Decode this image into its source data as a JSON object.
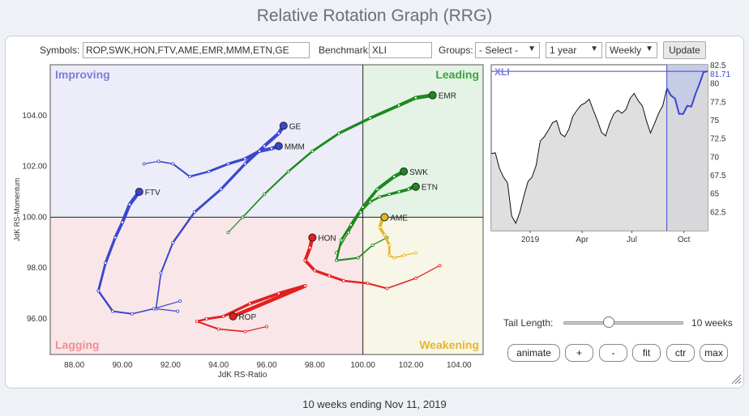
{
  "page_title": "Relative Rotation Graph (RRG)",
  "controls": {
    "symbols_label": "Symbols:",
    "symbols_value": "ROP,SWK,HON,FTV,AME,EMR,MMM,ETN,GE",
    "benchmark_label": "Benchmark:",
    "benchmark_value": "XLI",
    "groups_label": "Groups:",
    "groups_value": "- Select -",
    "period_value": "1 year",
    "frequency_value": "Weekly",
    "update_label": "Update"
  },
  "quadrants": {
    "improving": "Improving",
    "leading": "Leading",
    "lagging": "Lagging",
    "weakening": "Weakening"
  },
  "rrg": {
    "xlabel": "JdK RS-Ratio",
    "ylabel": "JdK RS-Momentum",
    "xticks": [
      "88.00",
      "90.00",
      "92.00",
      "94.00",
      "96.00",
      "98.00",
      "100.00",
      "102.00",
      "104.00"
    ],
    "yticks": [
      "104.00",
      "102.00",
      "100.00",
      "98.00",
      "96.00"
    ]
  },
  "chart_data": [
    {
      "type": "scatter",
      "xlabel": "JdK RS-Ratio",
      "ylabel": "JdK RS-Momentum",
      "xlim": [
        87,
        105
      ],
      "ylim": [
        94.6,
        106
      ],
      "series": [
        {
          "name": "GE",
          "color": "#3a47d0",
          "points": [
            [
              92.3,
              96.3
            ],
            [
              91.4,
              96.4
            ],
            [
              91.6,
              97.8
            ],
            [
              92.1,
              99.0
            ],
            [
              93.0,
              100.2
            ],
            [
              94.1,
              101.1
            ],
            [
              95.1,
              102.1
            ],
            [
              95.9,
              102.8
            ],
            [
              96.5,
              103.3
            ],
            [
              96.7,
              103.6
            ]
          ]
        },
        {
          "name": "MMM",
          "color": "#3a47d0",
          "points": [
            [
              90.9,
              102.1
            ],
            [
              91.5,
              102.2
            ],
            [
              92.1,
              102.1
            ],
            [
              92.8,
              101.6
            ],
            [
              93.6,
              101.8
            ],
            [
              94.4,
              102.1
            ],
            [
              95.1,
              102.3
            ],
            [
              95.7,
              102.6
            ],
            [
              96.2,
              102.7
            ],
            [
              96.5,
              102.8
            ]
          ]
        },
        {
          "name": "FTV",
          "color": "#3a47d0",
          "points": [
            [
              92.4,
              96.7
            ],
            [
              91.3,
              96.4
            ],
            [
              90.4,
              96.2
            ],
            [
              89.6,
              96.3
            ],
            [
              89.0,
              97.1
            ],
            [
              89.3,
              98.2
            ],
            [
              89.7,
              99.2
            ],
            [
              90.0,
              99.8
            ],
            [
              90.3,
              100.5
            ],
            [
              90.7,
              101.0
            ]
          ]
        },
        {
          "name": "ROP",
          "color": "#e32020",
          "points": [
            [
              96.0,
              95.7
            ],
            [
              95.1,
              95.5
            ],
            [
              94.0,
              95.6
            ],
            [
              93.1,
              95.9
            ],
            [
              93.5,
              96.0
            ],
            [
              94.2,
              96.1
            ],
            [
              95.3,
              96.6
            ],
            [
              96.5,
              97.0
            ],
            [
              97.6,
              97.3
            ],
            [
              94.6,
              96.1
            ]
          ]
        },
        {
          "name": "HON",
          "color": "#e32020",
          "points": [
            [
              103.2,
              98.1
            ],
            [
              102.2,
              97.6
            ],
            [
              101.0,
              97.2
            ],
            [
              100.2,
              97.4
            ],
            [
              99.2,
              97.5
            ],
            [
              98.6,
              97.7
            ],
            [
              98.0,
              97.9
            ],
            [
              97.6,
              98.3
            ],
            [
              97.8,
              98.8
            ],
            [
              97.9,
              99.2
            ]
          ]
        },
        {
          "name": "EMR",
          "color": "#1d8a1d",
          "points": [
            [
              94.4,
              99.4
            ],
            [
              95.0,
              100.0
            ],
            [
              95.9,
              100.9
            ],
            [
              96.9,
              101.8
            ],
            [
              97.9,
              102.6
            ],
            [
              99.0,
              103.3
            ],
            [
              100.3,
              103.9
            ],
            [
              101.5,
              104.4
            ],
            [
              102.2,
              104.7
            ],
            [
              102.9,
              104.8
            ]
          ]
        },
        {
          "name": "SWK",
          "color": "#1d8a1d",
          "points": [
            [
              101.0,
              99.2
            ],
            [
              100.4,
              98.9
            ],
            [
              99.8,
              98.4
            ],
            [
              98.9,
              98.3
            ],
            [
              99.1,
              99.1
            ],
            [
              99.5,
              99.7
            ],
            [
              100.0,
              100.4
            ],
            [
              100.6,
              101.1
            ],
            [
              101.3,
              101.6
            ],
            [
              101.7,
              101.8
            ]
          ]
        },
        {
          "name": "ETN",
          "color": "#1d8a1d",
          "points": [
            [
              98.9,
              98.6
            ],
            [
              99.4,
              99.4
            ],
            [
              99.9,
              100.2
            ],
            [
              100.3,
              100.6
            ],
            [
              100.7,
              100.8
            ],
            [
              101.1,
              100.9
            ],
            [
              101.5,
              101.0
            ],
            [
              101.9,
              101.1
            ],
            [
              102.1,
              101.2
            ],
            [
              102.2,
              101.2
            ]
          ]
        },
        {
          "name": "AME",
          "color": "#e8b41c",
          "points": [
            [
              102.2,
              98.6
            ],
            [
              101.7,
              98.5
            ],
            [
              101.3,
              98.4
            ],
            [
              101.1,
              98.5
            ],
            [
              101.1,
              98.9
            ],
            [
              100.9,
              99.3
            ],
            [
              100.7,
              99.6
            ],
            [
              100.8,
              99.9
            ],
            [
              100.9,
              100.0
            ],
            [
              100.9,
              100.0
            ]
          ]
        }
      ]
    },
    {
      "type": "line",
      "title": "XLI",
      "last_value_label": "81.71",
      "xticks": [
        "2019",
        "Apr",
        "Jul",
        "Oct"
      ],
      "yticks": [
        "82.5",
        "80",
        "77.5",
        "75",
        "72.5",
        "70",
        "67.5",
        "65",
        "62.5"
      ],
      "ylim": [
        60,
        82.6
      ],
      "values": [
        70.5,
        70.6,
        68.5,
        67.3,
        66.5,
        62.0,
        61.0,
        62.5,
        64.7,
        66.7,
        67.3,
        68.9,
        72.2,
        72.8,
        73.7,
        74.7,
        75.0,
        73.2,
        72.8,
        73.8,
        75.6,
        76.4,
        77.1,
        77.4,
        77.9,
        76.4,
        75.0,
        73.4,
        72.9,
        74.6,
        75.9,
        76.4,
        76.0,
        76.5,
        78.0,
        78.7,
        77.7,
        77.0,
        75.0,
        73.3,
        74.6,
        76.0,
        77.0,
        79.4,
        78.4,
        78.0,
        75.9,
        75.9,
        77.0,
        76.9,
        78.6,
        80.0,
        81.6,
        81.7
      ],
      "highlight_last": 10
    }
  ],
  "tail": {
    "label": "Tail Length:",
    "value": "10 weeks",
    "level": 0.38
  },
  "buttons": {
    "animate": "animate",
    "plus": "+",
    "minus": "-",
    "fit": "fit",
    "ctr": "ctr",
    "max": "max"
  },
  "footer": "10 weeks ending Nov 11, 2019",
  "colors": {
    "blue": "#3a47d0",
    "red": "#e32020",
    "green": "#1d8a1d",
    "yellow": "#e8b41c"
  }
}
